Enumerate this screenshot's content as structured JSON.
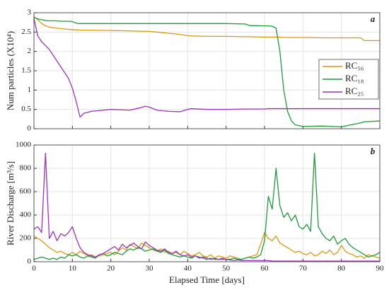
{
  "chart_data": [
    {
      "type": "line",
      "panel": "a",
      "ylabel": "Num particles (X10⁴)",
      "x": [
        0,
        1,
        2,
        3,
        4,
        5,
        6,
        7,
        8,
        9,
        10,
        11,
        12,
        13,
        15,
        20,
        25,
        28,
        29,
        30,
        32,
        35,
        38,
        40,
        41,
        45,
        50,
        55,
        56,
        60,
        61,
        62,
        63,
        64,
        65,
        66,
        67,
        68,
        70,
        75,
        80,
        85,
        86,
        90
      ],
      "series": [
        {
          "name": "RC₅₆",
          "color": "#d99a12",
          "values": [
            2.9,
            2.82,
            2.72,
            2.66,
            2.63,
            2.61,
            2.6,
            2.59,
            2.58,
            2.57,
            2.56,
            2.56,
            2.55,
            2.55,
            2.55,
            2.54,
            2.53,
            2.52,
            2.52,
            2.52,
            2.5,
            2.47,
            2.44,
            2.41,
            2.4,
            2.39,
            2.39,
            2.38,
            2.38,
            2.37,
            2.37,
            2.37,
            2.37,
            2.37,
            2.36,
            2.36,
            2.36,
            2.36,
            2.36,
            2.35,
            2.35,
            2.35,
            2.28,
            2.28
          ]
        },
        {
          "name": "RC₁₈",
          "color": "#1f9a3c",
          "values": [
            2.88,
            2.84,
            2.82,
            2.8,
            2.79,
            2.79,
            2.79,
            2.78,
            2.78,
            2.78,
            2.77,
            2.73,
            2.72,
            2.72,
            2.72,
            2.72,
            2.72,
            2.72,
            2.72,
            2.72,
            2.72,
            2.72,
            2.72,
            2.72,
            2.72,
            2.72,
            2.72,
            2.71,
            2.67,
            2.66,
            2.66,
            2.65,
            2.6,
            2.0,
            1.0,
            0.45,
            0.2,
            0.1,
            0.06,
            0.07,
            0.05,
            0.15,
            0.18,
            0.2
          ]
        },
        {
          "name": "RC₂₅",
          "color": "#9b34b8",
          "values": [
            2.85,
            2.4,
            2.25,
            2.15,
            2.05,
            1.9,
            1.75,
            1.6,
            1.45,
            1.3,
            1.05,
            0.7,
            0.3,
            0.4,
            0.45,
            0.5,
            0.48,
            0.55,
            0.58,
            0.56,
            0.48,
            0.45,
            0.44,
            0.5,
            0.52,
            0.5,
            0.5,
            0.51,
            0.51,
            0.51,
            0.52,
            0.52,
            0.52,
            0.52,
            0.52,
            0.52,
            0.52,
            0.52,
            0.52,
            0.52,
            0.52,
            0.52,
            0.52,
            0.52
          ]
        }
      ],
      "xlim": [
        0,
        90
      ],
      "xticks": [
        0,
        10,
        20,
        30,
        40,
        50,
        60,
        70,
        80,
        90
      ],
      "ylim": [
        0,
        3
      ],
      "yticks": [
        0,
        0.5,
        1,
        1.5,
        2,
        2.5,
        3
      ],
      "grid": true,
      "legend": "right"
    },
    {
      "type": "line",
      "panel": "b",
      "ylabel": "River Discharge [m³/s]",
      "xlabel": "Elapsed Time [days]",
      "x": [
        0,
        1,
        2,
        3,
        4,
        5,
        6,
        7,
        8,
        9,
        10,
        11,
        12,
        13,
        14,
        15,
        16,
        17,
        18,
        19,
        20,
        21,
        22,
        23,
        24,
        25,
        26,
        27,
        28,
        29,
        30,
        31,
        32,
        33,
        34,
        35,
        36,
        37,
        38,
        39,
        40,
        41,
        42,
        43,
        44,
        45,
        46,
        47,
        48,
        49,
        50,
        51,
        52,
        53,
        54,
        55,
        56,
        57,
        58,
        59,
        60,
        61,
        62,
        63,
        64,
        65,
        66,
        67,
        68,
        69,
        70,
        71,
        72,
        73,
        74,
        75,
        76,
        77,
        78,
        79,
        80,
        81,
        82,
        83,
        84,
        85,
        86,
        87,
        88,
        89,
        90
      ],
      "series": [
        {
          "color": "#d99a12",
          "values": [
            220,
            200,
            180,
            150,
            120,
            100,
            80,
            90,
            70,
            60,
            80,
            60,
            90,
            70,
            50,
            60,
            40,
            50,
            60,
            70,
            80,
            60,
            90,
            120,
            100,
            150,
            130,
            110,
            160,
            140,
            120,
            100,
            90,
            110,
            80,
            90,
            70,
            80,
            60,
            90,
            70,
            50,
            60,
            80,
            50,
            40,
            60,
            30,
            50,
            40,
            30,
            50,
            40,
            30,
            20,
            30,
            40,
            50,
            60,
            150,
            250,
            200,
            180,
            220,
            160,
            140,
            120,
            100,
            80,
            90,
            70,
            60,
            80,
            50,
            60,
            90,
            70,
            100,
            60,
            80,
            140,
            90,
            70,
            60,
            40,
            50,
            30,
            60,
            50,
            40,
            30
          ]
        },
        {
          "color": "#1f9a3c",
          "values": [
            20,
            30,
            40,
            30,
            20,
            30,
            20,
            40,
            30,
            60,
            50,
            60,
            40,
            30,
            50,
            40,
            30,
            60,
            70,
            50,
            60,
            80,
            70,
            60,
            90,
            110,
            100,
            120,
            110,
            90,
            100,
            110,
            90,
            80,
            100,
            70,
            60,
            50,
            40,
            50,
            40,
            30,
            50,
            40,
            30,
            20,
            30,
            20,
            20,
            30,
            20,
            20,
            30,
            20,
            20,
            30,
            40,
            30,
            40,
            60,
            180,
            560,
            450,
            800,
            480,
            380,
            420,
            350,
            400,
            300,
            280,
            320,
            260,
            930,
            300,
            240,
            200,
            180,
            220,
            150,
            180,
            200,
            150,
            120,
            100,
            80,
            60,
            40,
            50,
            60,
            80
          ]
        },
        {
          "color": "#9b34b8",
          "values": [
            280,
            300,
            250,
            930,
            200,
            260,
            180,
            240,
            220,
            250,
            300,
            200,
            120,
            80,
            60,
            50,
            40,
            60,
            70,
            90,
            110,
            130,
            100,
            150,
            120,
            140,
            160,
            130,
            110,
            170,
            140,
            120,
            100,
            90,
            110,
            80,
            70,
            90,
            60,
            50,
            60,
            40,
            50,
            30,
            40,
            30,
            20,
            30,
            20,
            20,
            20,
            15,
            10,
            15,
            10,
            10,
            10,
            10,
            10,
            10,
            10,
            10,
            5,
            5,
            5,
            5,
            5,
            5,
            5,
            5,
            5,
            5,
            5,
            5,
            5,
            5,
            5,
            5,
            5,
            5,
            5,
            5,
            5,
            5,
            5,
            5,
            5,
            5,
            5,
            5,
            5
          ]
        }
      ],
      "xlim": [
        0,
        90
      ],
      "xticks": [
        0,
        10,
        20,
        30,
        40,
        50,
        60,
        70,
        80,
        90
      ],
      "ylim": [
        0,
        1000
      ],
      "yticks": [
        0,
        200,
        400,
        600,
        800,
        1000
      ],
      "grid": true
    }
  ]
}
